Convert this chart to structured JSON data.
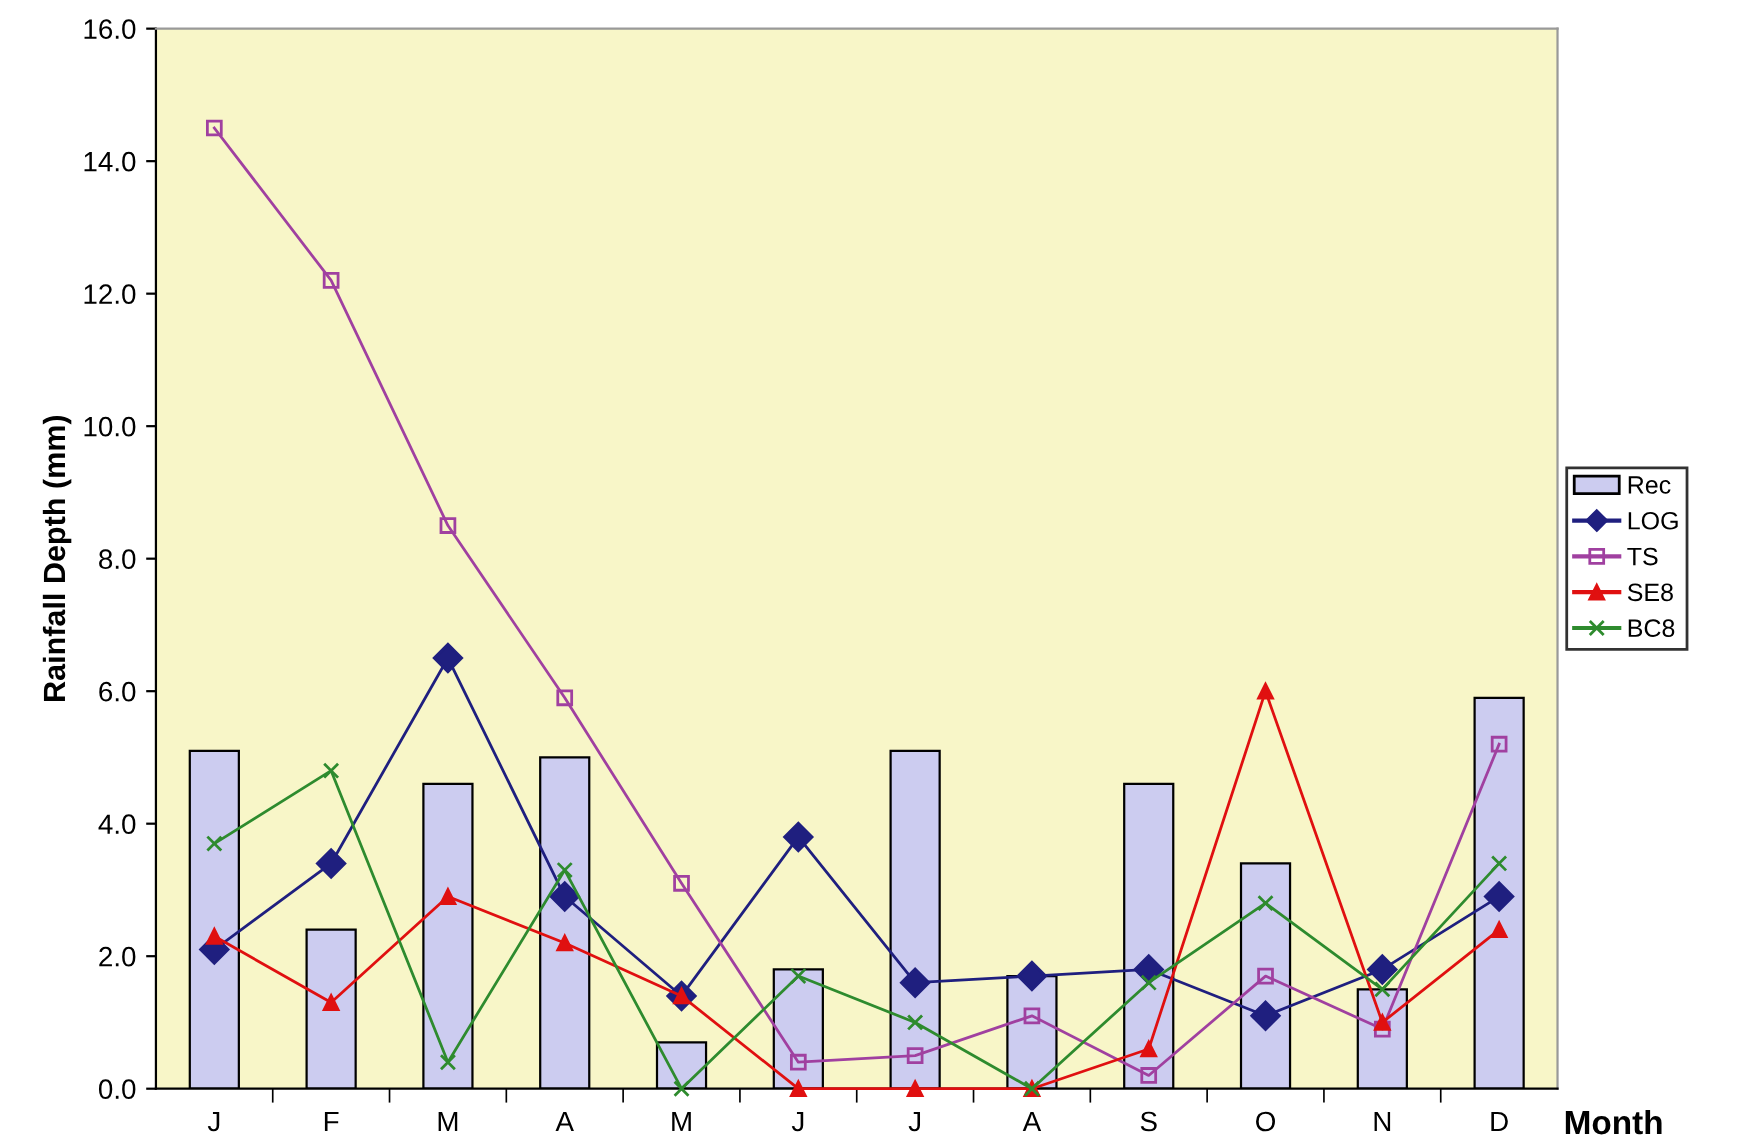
{
  "chart_data": {
    "type": "bar",
    "xlabel": "Month",
    "ylabel": "Rainfall Depth (mm)",
    "categories": [
      "J",
      "F",
      "M",
      "A",
      "M",
      "J",
      "J",
      "A",
      "S",
      "O",
      "N",
      "D"
    ],
    "series": [
      {
        "name": "Rec",
        "color": "#ccccf0",
        "values": [
          5.1,
          2.4,
          4.6,
          5.0,
          0.7,
          1.8,
          5.1,
          1.7,
          4.6,
          3.4,
          1.5,
          5.9
        ]
      },
      {
        "name": "LOG",
        "type": "line",
        "color": "#1f1f7f",
        "marker": "diamond",
        "values": [
          2.1,
          3.4,
          6.5,
          2.9,
          1.4,
          3.8,
          1.6,
          1.7,
          1.8,
          1.1,
          1.8,
          2.9
        ]
      },
      {
        "name": "TS",
        "type": "line",
        "color": "#a040a0",
        "marker": "square",
        "values": [
          14.5,
          12.2,
          8.5,
          5.9,
          3.1,
          0.4,
          0.5,
          1.1,
          0.2,
          1.7,
          0.9,
          5.2
        ]
      },
      {
        "name": "SE8",
        "type": "line",
        "color": "#e01010",
        "marker": "triangle",
        "values": [
          2.3,
          1.3,
          2.9,
          2.2,
          1.4,
          0.0,
          0.0,
          0.0,
          0.6,
          6.0,
          1.0,
          2.4
        ]
      },
      {
        "name": "BC8",
        "type": "line",
        "color": "#2e8b2e",
        "marker": "cross",
        "values": [
          3.7,
          4.8,
          0.4,
          3.3,
          0.0,
          1.7,
          1.0,
          0.0,
          1.6,
          2.8,
          1.5,
          3.4
        ]
      }
    ],
    "ylim": [
      0,
      16
    ],
    "yticks": [
      {
        "value": 0,
        "label": "0.0"
      },
      {
        "value": 2,
        "label": "2.0"
      },
      {
        "value": 4,
        "label": "4.0"
      },
      {
        "value": 6,
        "label": "6.0"
      },
      {
        "value": 8,
        "label": "8.0"
      },
      {
        "value": 10,
        "label": "10.0"
      },
      {
        "value": 12,
        "label": "12.0"
      },
      {
        "value": 14,
        "label": "14.0"
      },
      {
        "value": 16,
        "label": "16.0"
      }
    ],
    "grid": false,
    "legend": "right",
    "line_style": "solid"
  }
}
